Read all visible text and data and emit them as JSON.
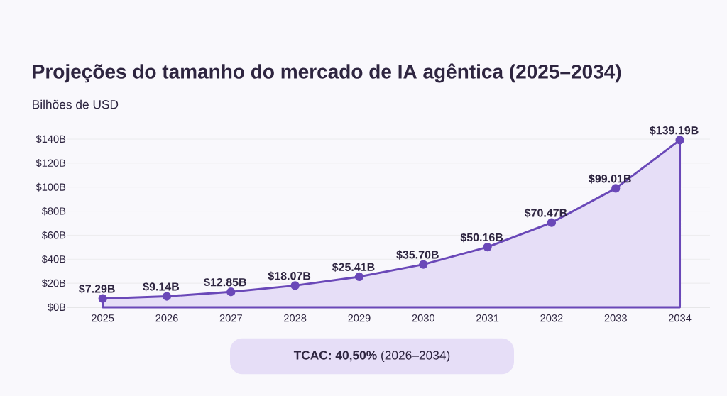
{
  "chart_data": {
    "type": "area",
    "title": "Projeções do tamanho do mercado de IA agêntica (2025–2034)",
    "subtitle": "Bilhões de USD",
    "categories": [
      "2025",
      "2026",
      "2027",
      "2028",
      "2029",
      "2030",
      "2031",
      "2032",
      "2033",
      "2034"
    ],
    "values": [
      7.29,
      9.14,
      12.85,
      18.07,
      25.41,
      35.7,
      50.16,
      70.47,
      99.01,
      139.19
    ],
    "value_labels": [
      "$7.29B",
      "$9.14B",
      "$12.85B",
      "$18.07B",
      "$25.41B",
      "$35.70B",
      "$50.16B",
      "$70.47B",
      "$99.01B",
      "$139.19B"
    ],
    "color": "#6a48b8",
    "marker": "circle",
    "grid": "y",
    "ylim": [
      0,
      140
    ],
    "yticks": [
      {
        "value": 0,
        "label": "$0B"
      },
      {
        "value": 20,
        "label": "$20B"
      },
      {
        "value": 40,
        "label": "$40B"
      },
      {
        "value": 60,
        "label": "$60B"
      },
      {
        "value": 80,
        "label": "$80B"
      },
      {
        "value": 100,
        "label": "$100B"
      },
      {
        "value": 120,
        "label": "$120B"
      },
      {
        "value": 140,
        "label": "$140B"
      }
    ],
    "annotations": [
      "**TCAC: 40,50%** (2026–2034)"
    ]
  }
}
